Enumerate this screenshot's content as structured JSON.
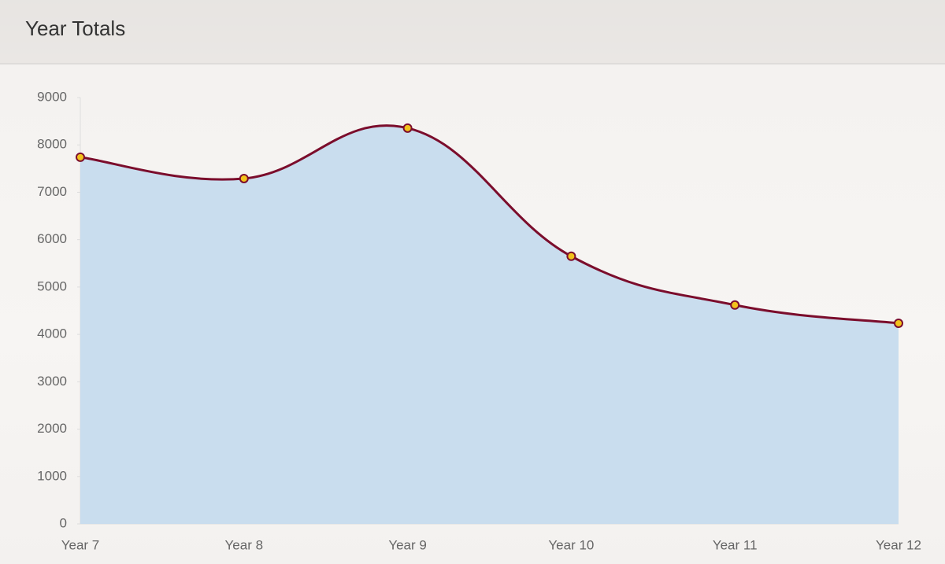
{
  "chart_data": {
    "type": "area",
    "title": "Year Totals",
    "categories": [
      "Year 7",
      "Year 8",
      "Year 9",
      "Year 10",
      "Year 11",
      "Year 12"
    ],
    "values": [
      7740,
      7290,
      8355,
      5650,
      4620,
      4235
    ],
    "color": "#7b0d2c",
    "fill_color": "#c6dbed",
    "marker_color": "#f2c21b",
    "ylim": [
      0,
      9000
    ],
    "yticks": [
      0,
      1000,
      2000,
      3000,
      4000,
      5000,
      6000,
      7000,
      8000,
      9000
    ]
  }
}
